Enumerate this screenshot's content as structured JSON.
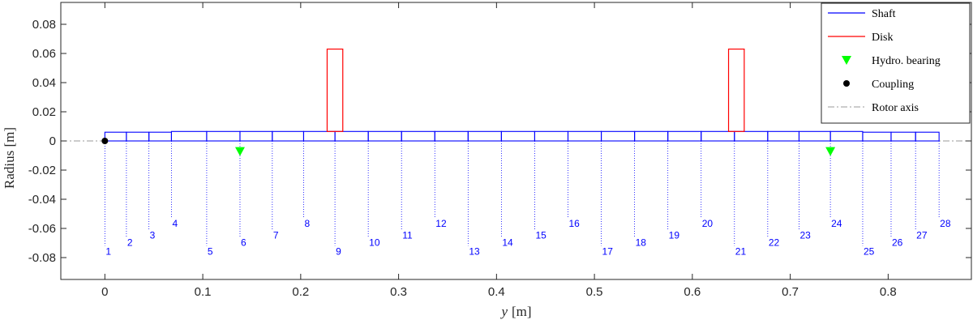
{
  "chart_data": {
    "type": "line",
    "title": "",
    "xlabel_var": "y",
    "xlabel_unit": "[m]",
    "ylabel": "Radius [m]",
    "xlim": [
      -0.045,
      0.885
    ],
    "ylim": [
      -0.095,
      0.095
    ],
    "x_ticks": [
      0,
      0.1,
      0.2,
      0.3,
      0.4,
      0.5,
      0.6,
      0.7,
      0.8
    ],
    "x_tick_labels": [
      "0",
      "0.1",
      "0.2",
      "0.3",
      "0.4",
      "0.5",
      "0.6",
      "0.7",
      "0.8"
    ],
    "y_ticks": [
      -0.08,
      -0.06,
      -0.04,
      -0.02,
      0,
      0.02,
      0.04,
      0.06,
      0.08
    ],
    "y_tick_labels": [
      "-0.08",
      "-0.06",
      "-0.04",
      "-0.02",
      "0",
      "0.02",
      "0.04",
      "0.06",
      "0.08"
    ],
    "grid": false,
    "legend_position": "top-right",
    "legend": [
      {
        "label": "Shaft",
        "marker": "line",
        "color": "#0000ff"
      },
      {
        "label": "Disk",
        "marker": "line",
        "color": "#ff0000"
      },
      {
        "label": "Hydro. bearing",
        "marker": "triangle-down",
        "color": "#00ff00"
      },
      {
        "label": "Coupling",
        "marker": "circle",
        "color": "#000000"
      },
      {
        "label": "Rotor axis",
        "marker": "dashdot",
        "color": "#999999"
      }
    ],
    "shaft": {
      "color": "#0000ff",
      "segments": [
        {
          "x0": 0.0,
          "x1": 0.022,
          "radius": 0.006
        },
        {
          "x0": 0.022,
          "x1": 0.045,
          "radius": 0.006
        },
        {
          "x0": 0.045,
          "x1": 0.068,
          "radius": 0.006
        },
        {
          "x0": 0.068,
          "x1": 0.104,
          "radius": 0.0065
        },
        {
          "x0": 0.104,
          "x1": 0.138,
          "radius": 0.0065
        },
        {
          "x0": 0.138,
          "x1": 0.171,
          "radius": 0.0065
        },
        {
          "x0": 0.171,
          "x1": 0.203,
          "radius": 0.0065
        },
        {
          "x0": 0.203,
          "x1": 0.235,
          "radius": 0.0065
        },
        {
          "x0": 0.235,
          "x1": 0.269,
          "radius": 0.0065
        },
        {
          "x0": 0.269,
          "x1": 0.303,
          "radius": 0.0065
        },
        {
          "x0": 0.303,
          "x1": 0.337,
          "radius": 0.0065
        },
        {
          "x0": 0.337,
          "x1": 0.371,
          "radius": 0.0065
        },
        {
          "x0": 0.371,
          "x1": 0.405,
          "radius": 0.0065
        },
        {
          "x0": 0.405,
          "x1": 0.439,
          "radius": 0.0065
        },
        {
          "x0": 0.439,
          "x1": 0.473,
          "radius": 0.0065
        },
        {
          "x0": 0.473,
          "x1": 0.507,
          "radius": 0.0065
        },
        {
          "x0": 0.507,
          "x1": 0.541,
          "radius": 0.0065
        },
        {
          "x0": 0.541,
          "x1": 0.575,
          "radius": 0.0065
        },
        {
          "x0": 0.575,
          "x1": 0.609,
          "radius": 0.0065
        },
        {
          "x0": 0.609,
          "x1": 0.643,
          "radius": 0.0065
        },
        {
          "x0": 0.643,
          "x1": 0.677,
          "radius": 0.0065
        },
        {
          "x0": 0.677,
          "x1": 0.709,
          "radius": 0.0065
        },
        {
          "x0": 0.709,
          "x1": 0.741,
          "radius": 0.0065
        },
        {
          "x0": 0.741,
          "x1": 0.774,
          "radius": 0.0065
        },
        {
          "x0": 0.774,
          "x1": 0.803,
          "radius": 0.006
        },
        {
          "x0": 0.803,
          "x1": 0.828,
          "radius": 0.006
        },
        {
          "x0": 0.828,
          "x1": 0.852,
          "radius": 0.006
        }
      ]
    },
    "disks": {
      "color": "#ff0000",
      "items": [
        {
          "x0": 0.227,
          "x1": 0.243,
          "r_inner": 0.0065,
          "r_outer": 0.063
        },
        {
          "x0": 0.637,
          "x1": 0.653,
          "r_inner": 0.0065,
          "r_outer": 0.063
        }
      ]
    },
    "bearings": [
      {
        "x": 0.138,
        "y": -0.007,
        "color": "#00ff00"
      },
      {
        "x": 0.741,
        "y": -0.007,
        "color": "#00ff00"
      }
    ],
    "coupling": {
      "x": 0.0,
      "y": 0.0,
      "color": "#000000"
    },
    "rotor_axis": {
      "y": 0,
      "color": "#999999"
    },
    "nodes": [
      {
        "id": "1",
        "x": 0.0,
        "label_y": -0.073
      },
      {
        "id": "2",
        "x": 0.022,
        "label_y": -0.067
      },
      {
        "id": "3",
        "x": 0.045,
        "label_y": -0.062
      },
      {
        "id": "4",
        "x": 0.068,
        "label_y": -0.054
      },
      {
        "id": "5",
        "x": 0.104,
        "label_y": -0.073
      },
      {
        "id": "6",
        "x": 0.138,
        "label_y": -0.067
      },
      {
        "id": "7",
        "x": 0.171,
        "label_y": -0.062
      },
      {
        "id": "8",
        "x": 0.203,
        "label_y": -0.054
      },
      {
        "id": "9",
        "x": 0.235,
        "label_y": -0.073
      },
      {
        "id": "10",
        "x": 0.269,
        "label_y": -0.067
      },
      {
        "id": "11",
        "x": 0.303,
        "label_y": -0.062
      },
      {
        "id": "12",
        "x": 0.337,
        "label_y": -0.054
      },
      {
        "id": "13",
        "x": 0.371,
        "label_y": -0.073
      },
      {
        "id": "14",
        "x": 0.405,
        "label_y": -0.067
      },
      {
        "id": "15",
        "x": 0.439,
        "label_y": -0.062
      },
      {
        "id": "16",
        "x": 0.473,
        "label_y": -0.054
      },
      {
        "id": "17",
        "x": 0.507,
        "label_y": -0.073
      },
      {
        "id": "18",
        "x": 0.541,
        "label_y": -0.067
      },
      {
        "id": "19",
        "x": 0.575,
        "label_y": -0.062
      },
      {
        "id": "20",
        "x": 0.609,
        "label_y": -0.054
      },
      {
        "id": "21",
        "x": 0.643,
        "label_y": -0.073
      },
      {
        "id": "22",
        "x": 0.677,
        "label_y": -0.067
      },
      {
        "id": "23",
        "x": 0.709,
        "label_y": -0.062
      },
      {
        "id": "24",
        "x": 0.741,
        "label_y": -0.054
      },
      {
        "id": "25",
        "x": 0.774,
        "label_y": -0.073
      },
      {
        "id": "26",
        "x": 0.803,
        "label_y": -0.067
      },
      {
        "id": "27",
        "x": 0.828,
        "label_y": -0.062
      },
      {
        "id": "28",
        "x": 0.852,
        "label_y": -0.054
      }
    ]
  }
}
